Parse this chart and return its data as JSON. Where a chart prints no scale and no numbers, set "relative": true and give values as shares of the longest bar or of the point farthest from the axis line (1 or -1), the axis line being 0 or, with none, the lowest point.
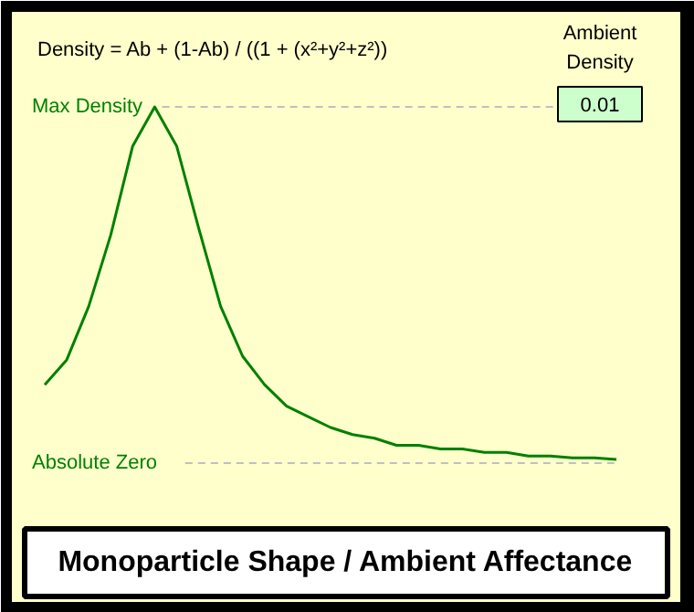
{
  "chart_data": {
    "type": "line",
    "title": "Monoparticle Shape / Ambient Affectance",
    "annotations": [
      "Density = Ab + (1-Ab) / ((1 + (x²+y²+z²))",
      "Ambient Density",
      "0.01"
    ],
    "categories": [
      null,
      null,
      null,
      null,
      null,
      null,
      null,
      null,
      null,
      null,
      null,
      null,
      null,
      null,
      null,
      null,
      null,
      null,
      null,
      null,
      null,
      null,
      null,
      null,
      null,
      null,
      null
    ],
    "values": [
      0.22,
      0.29,
      0.44,
      0.64,
      0.89,
      1.0,
      0.89,
      0.66,
      0.44,
      0.3,
      0.22,
      0.16,
      0.13,
      0.1,
      0.08,
      0.07,
      0.05,
      0.05,
      0.04,
      0.04,
      0.03,
      0.03,
      0.02,
      0.02,
      0.015,
      0.015,
      0.01
    ],
    "color": "#008000",
    "relative": true,
    "ref_lines": [
      {
        "axis": "y",
        "value": 0,
        "label": "Absolute Zero",
        "color": "#c0c0c0",
        "line_style": "dashed"
      },
      {
        "axis": "y",
        "value": 1,
        "label": "Max Density",
        "color": "#c0c0c0",
        "line_style": "dashed"
      }
    ]
  }
}
